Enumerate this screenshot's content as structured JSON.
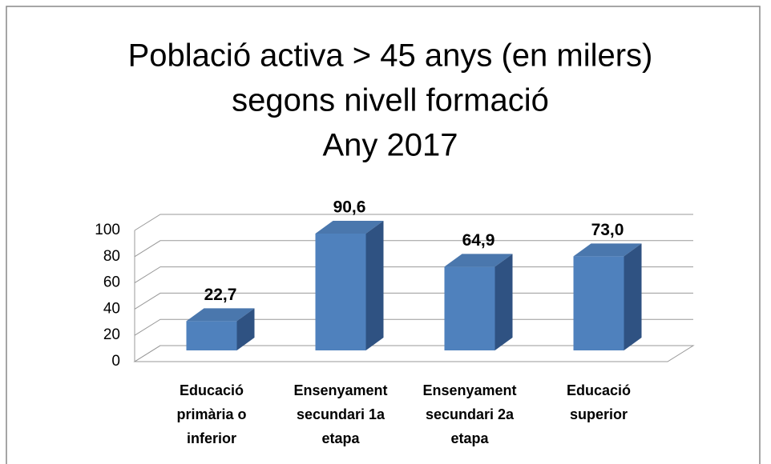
{
  "chart_data": {
    "type": "bar3d",
    "title": [
      "Població activa > 45 anys (en milers)",
      "segons nivell formació",
      "Any 2017"
    ],
    "categories": [
      "Educació primària o inferior",
      "Ensenyament secundari 1a etapa",
      "Ensenyament secundari 2a etapa",
      "Educació superior"
    ],
    "values": [
      22.7,
      90.6,
      64.9,
      73.0
    ],
    "value_labels": [
      "22,7",
      "90,6",
      "64,9",
      "73,0"
    ],
    "color": "#4f81bd",
    "ylim": [
      0,
      100
    ],
    "yticks": [
      0,
      20,
      40,
      60,
      80,
      100
    ],
    "grid": true
  }
}
